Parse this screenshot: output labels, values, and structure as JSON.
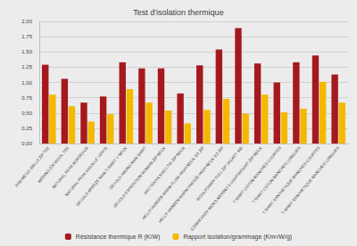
{
  "chart_data": {
    "type": "bar",
    "title": "Test d'isolation thermique",
    "categories": [
      "RAB MECO 165 LS ZIP TEE",
      "MERINO 220 WOOL TEE",
      "NATURAL PEAK BORDEAUX",
      "NATURAL PEAK AIGUILLE VERTE",
      "DEVOLD BREEZE MAN T-SHIRT V NECK",
      "DEVOLD HIKING MAN SHIRT",
      "DEVOLD EXPEDITION WOMAN ZIP NECK",
      "ARC'TERYX RHO LTW ZIP NECK",
      "HELLY HANSEN WARM FLOW HIGH NECK 1/2 ZIP",
      "HELLY HANSEN WARM FREEZE HIGH NECK 1/2 ZIP",
      "WOOLPOWER FULL ZIP JACKET 400",
      "ICEBREAKER MEN'S MERINO 1 LIGHTWEIGHT ZIP-NECK",
      "T-SHIRT COTON MANCHES COURTES",
      "T-SHIRT COTON MANCHES LONGUES",
      "T-SHIRT SYNTHETIQUE MANCHES COURTES",
      "T-SHIRT SYNTHETIQUE MANCHES LONGUES"
    ],
    "series": [
      {
        "name": "Résistance thermique R (K/W)",
        "color": "#a5191e",
        "values": [
          1.29,
          1.06,
          0.67,
          0.77,
          1.33,
          1.23,
          1.23,
          0.82,
          1.28,
          1.54,
          1.89,
          1.31,
          1.0,
          1.33,
          1.44,
          1.13
        ]
      },
      {
        "name": "Rapport isolation/grammage (Km²/W/g)",
        "color": "#f5b800",
        "values": [
          0.8,
          0.61,
          0.36,
          0.48,
          0.89,
          0.67,
          0.54,
          0.33,
          0.55,
          0.73,
          0.49,
          0.8,
          0.51,
          0.57,
          1.01,
          0.67
        ]
      }
    ],
    "ylim": [
      0,
      2
    ],
    "yticks": [
      {
        "value": 0,
        "label": "0,00"
      },
      {
        "value": 0.25,
        "label": "0,25"
      },
      {
        "value": 0.5,
        "label": "0,50"
      },
      {
        "value": 0.75,
        "label": "0,75"
      },
      {
        "value": 1,
        "label": "1,00"
      },
      {
        "value": 1.25,
        "label": "1,25"
      },
      {
        "value": 1.5,
        "label": "1,50"
      },
      {
        "value": 1.75,
        "label": "1,75"
      },
      {
        "value": 2,
        "label": "2,00"
      }
    ],
    "grid": true,
    "legend": "bottom"
  }
}
